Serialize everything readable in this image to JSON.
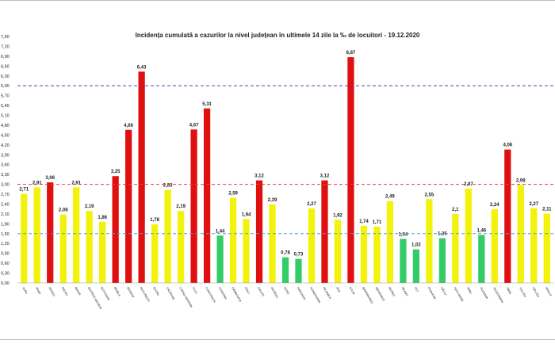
{
  "chart_data": {
    "type": "bar",
    "title": "Incidența cumulată a cazurilor la nivel județean în ultimele 14 zile la ‰ de locuitori - 19.12.2020",
    "xlabel": "",
    "ylabel": "",
    "ylim": [
      0,
      7.5
    ],
    "yticks": [
      "0,00",
      "0,30",
      "0,60",
      "0,90",
      "1,20",
      "1,50",
      "1,80",
      "2,10",
      "2,40",
      "2,70",
      "3,00",
      "3,30",
      "3,60",
      "3,90",
      "4,20",
      "4,50",
      "4,80",
      "5,10",
      "5,40",
      "5,70",
      "6,00",
      "6,30",
      "6,60",
      "6,90",
      "7,20",
      "7,50"
    ],
    "grid": false,
    "legend": "none",
    "categories": [
      "ALBA",
      "ARAD",
      "ARGEȘ",
      "BACĂU",
      "BIHOR",
      "BISTRIȚA NĂSĂUD",
      "BOTOȘANI",
      "BRĂILA",
      "BRAȘOV",
      "BUCUREȘTI",
      "BUZĂU",
      "CĂLĂRAȘI",
      "CARAȘ-SEVERIN",
      "CLUJ",
      "CONSTANȚA",
      "COVASNA",
      "DÂMBOVIȚA",
      "DOLJ",
      "GALAȚI",
      "GIURGIU",
      "GORJ",
      "HARGHITA",
      "HUNEDOARA",
      "IALOMIȚA",
      "IAȘI",
      "ILFOV",
      "MARAMUREȘ",
      "MEHEDINȚI",
      "MUREȘ",
      "NEAMȚ",
      "OLT",
      "PRAHOVA",
      "SĂLAJ",
      "SATU MARE",
      "SIBIU",
      "SUCEAVA",
      "TELEORMAN",
      "TIMIȘ",
      "TULCEA",
      "VÂLCEA",
      "VASLUI"
    ],
    "values": [
      2.71,
      2.91,
      3.06,
      2.08,
      2.91,
      2.19,
      1.86,
      3.25,
      4.66,
      6.43,
      1.78,
      2.83,
      2.19,
      4.67,
      5.31,
      1.44,
      2.59,
      1.94,
      3.12,
      2.39,
      0.78,
      0.73,
      2.27,
      3.12,
      1.92,
      6.87,
      1.74,
      1.71,
      2.49,
      1.34,
      1.02,
      2.55,
      1.36,
      2.1,
      2.87,
      1.46,
      2.24,
      4.06,
      2.98,
      2.27,
      2.11
    ],
    "value_labels": [
      "2,71",
      "2,91",
      "3,06",
      "2,08",
      "2,91",
      "2,19",
      "1,86",
      "3,25",
      "4,66",
      "6,43",
      "1,78",
      "2,83",
      "2,19",
      "4,67",
      "5,31",
      "1,44",
      "2,59",
      "1,94",
      "3,12",
      "2,39",
      "0,78",
      "0,73",
      "2,27",
      "3,12",
      "1,92",
      "6,87",
      "1,74",
      "1,71",
      "2,49",
      "1,34",
      "1,02",
      "2,55",
      "1,36",
      "2,1",
      "2,87",
      "1,46",
      "2,24",
      "4,06",
      "2,98",
      "2,27",
      "2,11"
    ],
    "thresholds": [
      {
        "value": 1.5,
        "color": "#4aa3d8"
      },
      {
        "value": 3.0,
        "color": "#e04040"
      },
      {
        "value": 6.0,
        "color": "#3a4aa8"
      }
    ],
    "colors": {
      "low": "#33cc66",
      "medium": "#f2f20a",
      "high": "#e01010"
    }
  }
}
